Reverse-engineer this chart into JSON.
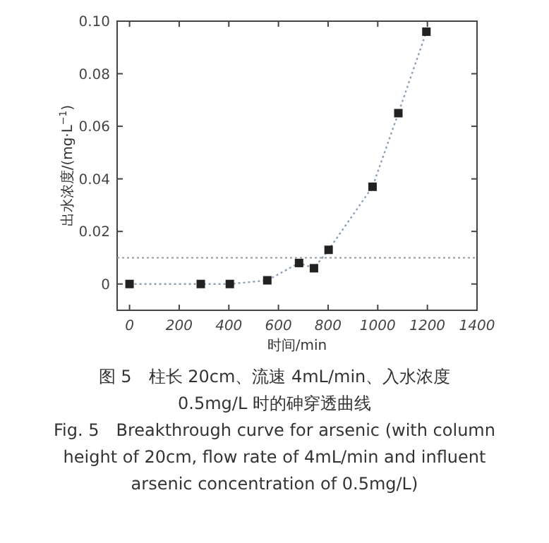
{
  "chart_data": {
    "type": "line",
    "xlabel": "时间/min",
    "ylabel": "出水浓度/(mg·L$^{−1}$)",
    "x": [
      0,
      287,
      404,
      555,
      683,
      743,
      802,
      979,
      1083,
      1196
    ],
    "series": [
      {
        "color": "#222222",
        "values": [
          0.0,
          0.0,
          0.0,
          0.0014,
          0.008,
          0.006,
          0.013,
          0.037,
          0.065,
          0.096
        ],
        "marker": "square",
        "line_style": "dotted"
      }
    ],
    "xlim": [
      -50,
      1400
    ],
    "ylim": [
      -0.01,
      0.1
    ],
    "xticks": [
      0,
      200,
      400,
      600,
      800,
      1000,
      1200,
      1400
    ],
    "yticks": [
      {
        "value": 0,
        "label": "0"
      },
      0.02,
      0.04,
      0.06,
      0.08,
      {
        "value": 0.1,
        "label": "0.10"
      }
    ],
    "ref_lines": [
      {
        "axis": "y",
        "value": 0.01,
        "line_style": "dotted",
        "color": "#999999"
      }
    ],
    "grid": false,
    "annotations": [
      "图 5　柱长 20cm、流速 4mL/min、入水浓度 0.5mg/L 时的砷穿透曲线",
      "Fig. 5　Breakthrough curve for arsenic (with column height of 20cm, flow rate of 4mL/min and influent arsenic concentration of 0.5mg/L)"
    ]
  }
}
